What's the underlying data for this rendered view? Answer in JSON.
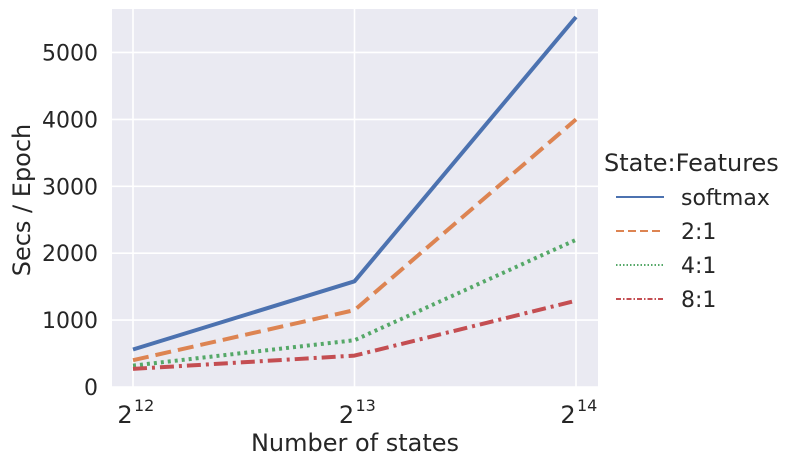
{
  "chart_data": {
    "type": "line",
    "xlabel": "Number of states",
    "ylabel": "Secs / Epoch",
    "x_scale": "log2",
    "x": [
      4096,
      8192,
      16384
    ],
    "x_tick_labels": [
      {
        "base": "2",
        "exp": "12"
      },
      {
        "base": "2",
        "exp": "13"
      },
      {
        "base": "2",
        "exp": "14"
      }
    ],
    "y_ticks": [
      "0",
      "1000",
      "2000",
      "3000",
      "4000",
      "5000"
    ],
    "ylim": [
      0,
      5650
    ],
    "grid": true,
    "background": "#eaeaf2",
    "legend_title": "State:Features",
    "legend_position": "right-outside",
    "series": [
      {
        "name": "softmax",
        "values": [
          560,
          1580,
          5530
        ],
        "color": "#4c72b0",
        "dash": "solid"
      },
      {
        "name": "2:1",
        "values": [
          400,
          1150,
          4000
        ],
        "color": "#dd8452",
        "dash": "dashed"
      },
      {
        "name": "4:1",
        "values": [
          320,
          700,
          2200
        ],
        "color": "#55a868",
        "dash": "dotted"
      },
      {
        "name": "8:1",
        "values": [
          270,
          470,
          1290
        ],
        "color": "#c44e52",
        "dash": "dashdot"
      }
    ]
  }
}
